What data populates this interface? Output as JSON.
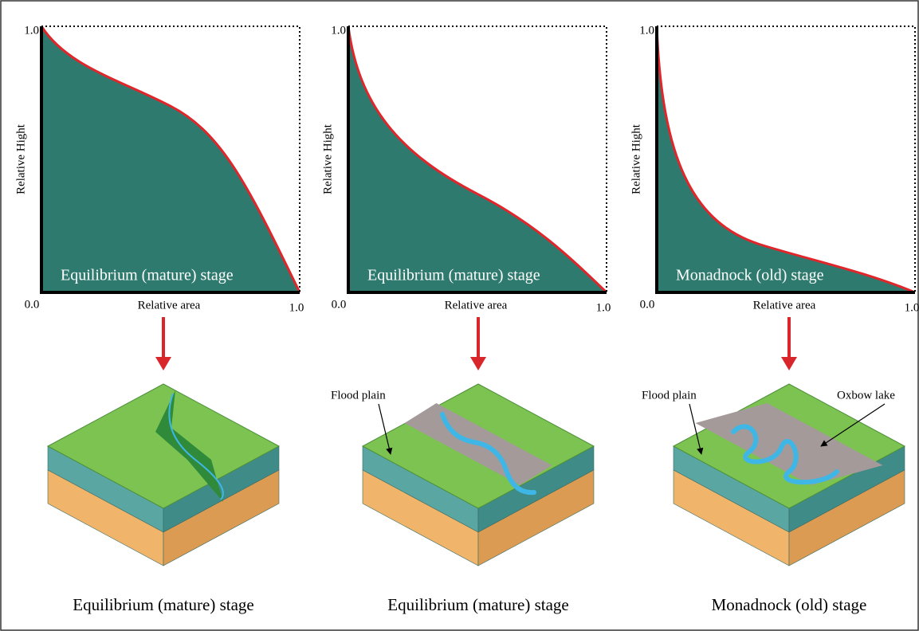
{
  "panels": [
    {
      "y_axis_label": "Relative Hight",
      "y_max": "1.0",
      "x_min": "0.0",
      "x_max": "1.0",
      "x_axis_label": "Relative area",
      "curve_label": "Equilibrium (mature) stage",
      "annotations": [],
      "caption": "Equilibrium (mature) stage"
    },
    {
      "y_axis_label": "Relative Hight",
      "y_max": "1.0",
      "x_min": "0.0",
      "x_max": "1.0",
      "x_axis_label": "Relative area",
      "curve_label": "Equilibrium (mature) stage",
      "annotations": [
        "Flood plain"
      ],
      "caption": "Equilibrium (mature) stage"
    },
    {
      "y_axis_label": "Relative Hight",
      "y_max": "1.0",
      "x_min": "0.0",
      "x_max": "1.0",
      "x_axis_label": "Relative area",
      "curve_label": "Monadnock (old) stage",
      "annotations": [
        "Flood plain",
        "Oxbow lake"
      ],
      "caption": "Monadnock (old) stage"
    }
  ]
}
